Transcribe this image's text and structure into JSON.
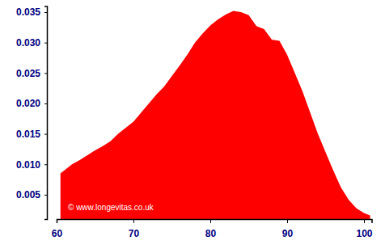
{
  "chart_data": {
    "type": "area",
    "color": "#ff0000",
    "annotations": [
      "© www.longevitas.co.uk"
    ],
    "x": [
      60.5,
      62,
      63,
      64,
      65,
      66,
      67,
      68,
      69,
      70,
      71,
      72,
      73,
      74,
      75,
      76,
      77,
      78,
      79,
      80,
      81,
      82,
      83,
      84,
      85,
      86,
      87,
      88,
      89,
      90,
      91,
      92,
      93,
      94,
      95,
      96,
      97,
      98,
      99,
      100,
      100.8
    ],
    "values": [
      0.0085,
      0.01,
      0.0107,
      0.0115,
      0.0123,
      0.013,
      0.0138,
      0.015,
      0.016,
      0.017,
      0.0185,
      0.02,
      0.0215,
      0.0228,
      0.0245,
      0.0262,
      0.028,
      0.03,
      0.0315,
      0.0328,
      0.0338,
      0.0346,
      0.0352,
      0.035,
      0.0345,
      0.0327,
      0.0322,
      0.0305,
      0.0303,
      0.028,
      0.025,
      0.022,
      0.0185,
      0.015,
      0.012,
      0.009,
      0.0062,
      0.0042,
      0.0028,
      0.002,
      0.0016
    ],
    "xlim": [
      60,
      101
    ],
    "xticks": [
      60,
      70,
      80,
      90,
      100
    ],
    "ylim": [
      0.001,
      0.036
    ],
    "yticks": [
      0.005,
      {
        "value": 0.01,
        "label": "0.010"
      },
      0.015,
      {
        "value": 0.02,
        "label": "0.020"
      },
      0.025,
      {
        "value": 0.03,
        "label": "0.030"
      },
      0.035
    ]
  }
}
